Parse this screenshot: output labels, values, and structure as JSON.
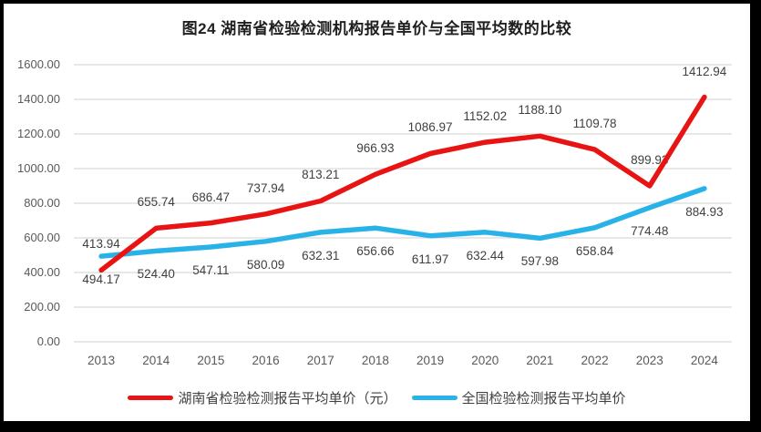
{
  "chart_data": {
    "type": "line",
    "title": "图24 湖南省检验检测机构报告单价与全国平均数的比较",
    "categories": [
      "2013",
      "2014",
      "2015",
      "2016",
      "2017",
      "2018",
      "2019",
      "2020",
      "2021",
      "2022",
      "2023",
      "2024"
    ],
    "series": [
      {
        "name": "湖南省检验检测报告平均单价（元）",
        "color": "#e81414",
        "label_position": "above",
        "values": [
          413.94,
          655.74,
          686.47,
          737.94,
          813.21,
          966.93,
          1086.97,
          1152.02,
          1188.1,
          1109.78,
          899.93,
          1412.94
        ]
      },
      {
        "name": "全国检验检测报告平均单价",
        "color": "#29b2e8",
        "label_position": "below",
        "values": [
          494.17,
          524.4,
          547.11,
          580.09,
          632.31,
          656.66,
          611.97,
          632.44,
          597.98,
          658.84,
          774.48,
          884.93
        ]
      }
    ],
    "xlabel": "",
    "ylabel": "",
    "ylim": [
      0,
      1600
    ],
    "ytick_step": 200,
    "ytick_labels": [
      "0.00",
      "200.00",
      "400.00",
      "600.00",
      "800.00",
      "1000.00",
      "1200.00",
      "1400.00",
      "1600.00"
    ],
    "grid": true,
    "legend_position": "bottom",
    "colors": {
      "gridline": "#d9d9d9",
      "axis_text": "#595959",
      "data_label_text": "#3f3f3f",
      "title_text": "#1f1f1f",
      "legend_text": "#404040",
      "frame_border": "#000000",
      "background": "#ffffff"
    }
  }
}
